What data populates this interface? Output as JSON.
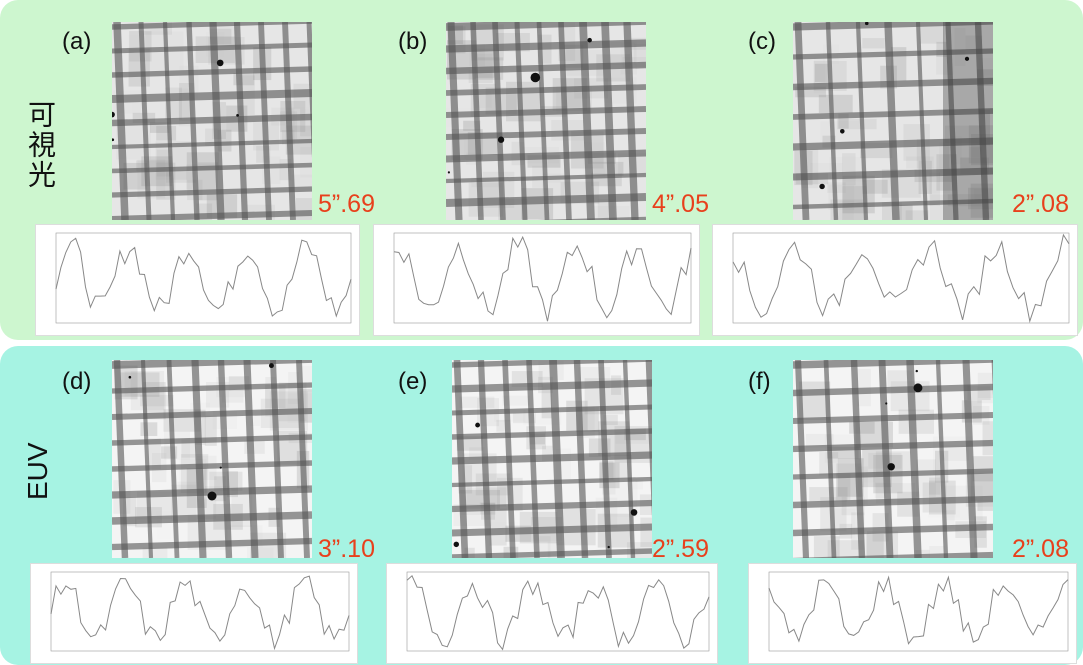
{
  "rows": [
    {
      "label": "可視光",
      "panels": [
        {
          "label": "(a)",
          "seeing": "5”.69"
        },
        {
          "label": "(b)",
          "seeing": "4”.05"
        },
        {
          "label": "(c)",
          "seeing": "2”.08"
        }
      ]
    },
    {
      "label": "EUV",
      "panels": [
        {
          "label": "(d)",
          "seeing": "3”.10"
        },
        {
          "label": "(e)",
          "seeing": "2”.59"
        },
        {
          "label": "(f)",
          "seeing": "2”.08"
        }
      ]
    }
  ]
}
